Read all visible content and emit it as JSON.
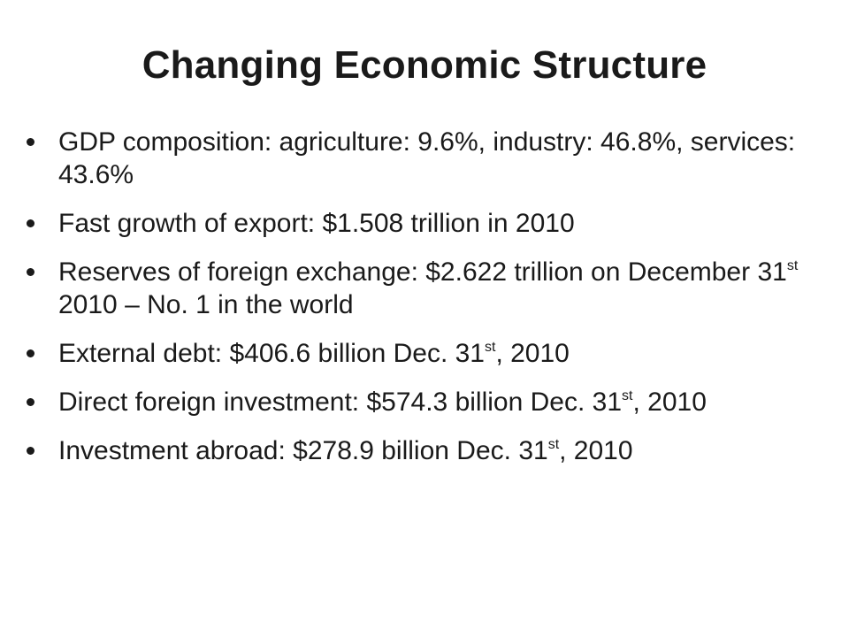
{
  "slide": {
    "title": "Changing Economic Structure",
    "bullets": [
      {
        "parts": [
          {
            "text": "GDP composition: agriculture: 9.6%, industry: 46.8%, services: 43.6%"
          }
        ]
      },
      {
        "parts": [
          {
            "text": "Fast growth of export: $1.508 trillion in 2010"
          }
        ]
      },
      {
        "parts": [
          {
            "text": "Reserves of foreign exchange: $2.622  trillion on December 31"
          },
          {
            "sup": "st"
          },
          {
            "text": " 2010 – No. 1 in the world"
          }
        ]
      },
      {
        "parts": [
          {
            "text": "External debt: $406.6 billion  Dec. 31"
          },
          {
            "sup": "st"
          },
          {
            "text": ", 2010"
          }
        ]
      },
      {
        "parts": [
          {
            "text": "Direct foreign investment: $574.3  billion Dec. 31"
          },
          {
            "sup": "st"
          },
          {
            "text": ", 2010"
          }
        ]
      },
      {
        "parts": [
          {
            "text": "Investment abroad: $278.9  billion Dec. 31"
          },
          {
            "sup": "st"
          },
          {
            "text": ", 2010"
          }
        ]
      }
    ]
  }
}
